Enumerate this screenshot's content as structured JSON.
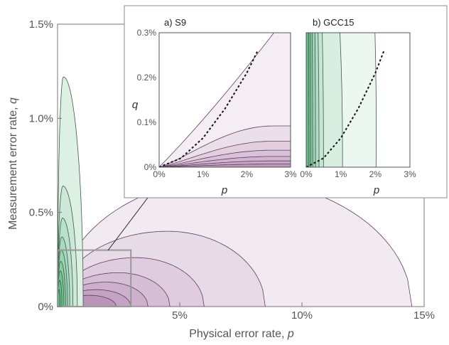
{
  "chart_data": [
    {
      "type": "area",
      "xlabel": "Physical error rate, ",
      "xlabel_symbol": "p",
      "ylabel": "Measurement error rate, ",
      "ylabel_symbol": "q",
      "xlim": [
        0,
        0.15
      ],
      "ylim": [
        0,
        0.015
      ],
      "xtick_labels": [
        "5%",
        "10%",
        "15%"
      ],
      "ytick_labels": [
        "1.5%",
        "1.0%",
        "0.5%",
        "0%"
      ],
      "grid": false,
      "series": [
        {
          "color": "#3aaa6a",
          "contours": [
            {
              "p_max": 0.0105,
              "q_max": 0.0122,
              "peak_p": 0.0024
            },
            {
              "p_max": 0.0081,
              "q_max": 0.0064,
              "peak_p": 0.0022
            },
            {
              "p_max": 0.0063,
              "q_max": 0.0047,
              "peak_p": 0.002
            },
            {
              "p_max": 0.005,
              "q_max": 0.0037,
              "peak_p": 0.0017
            },
            {
              "p_max": 0.0041,
              "q_max": 0.003,
              "peak_p": 0.0015
            },
            {
              "p_max": 0.0033,
              "q_max": 0.0024,
              "peak_p": 0.0013
            },
            {
              "p_max": 0.0026,
              "q_max": 0.0019,
              "peak_p": 0.0011
            },
            {
              "p_max": 0.0018,
              "q_max": 0.0014,
              "peak_p": 0.0009
            },
            {
              "p_max": 0.001,
              "q_max": 0.0009,
              "peak_p": 0.0006
            }
          ]
        },
        {
          "color": "#8e4c8c",
          "contours": [
            {
              "p_max": 0.145,
              "q_max": 0.0068,
              "peak_p": 0.07
            },
            {
              "p_max": 0.085,
              "q_max": 0.004,
              "peak_p": 0.045
            },
            {
              "p_max": 0.06,
              "q_max": 0.0026,
              "peak_p": 0.032
            },
            {
              "p_max": 0.046,
              "q_max": 0.0018,
              "peak_p": 0.025
            },
            {
              "p_max": 0.037,
              "q_max": 0.0013,
              "peak_p": 0.02
            },
            {
              "p_max": 0.03,
              "q_max": 0.0009,
              "peak_p": 0.016
            },
            {
              "p_max": 0.024,
              "q_max": 0.0006,
              "peak_p": 0.013
            }
          ]
        }
      ],
      "zoom_box": {
        "p": [
          0,
          0.03
        ],
        "q": [
          0,
          0.003
        ]
      }
    },
    {
      "type": "area",
      "title": "a) S9",
      "xlabel": "p",
      "ylabel": "q",
      "xlim": [
        0,
        0.03
      ],
      "ylim": [
        0,
        0.003
      ],
      "xtick_labels": [
        "0%",
        "1%",
        "2%",
        "3%"
      ],
      "ytick_labels": [
        "0.3%",
        "0.2%",
        "0.1%",
        "0%"
      ],
      "color": "#8e4c8c",
      "contours": [
        {
          "p_max": 0.03,
          "q_max": 0.002
        },
        {
          "p_max": 0.03,
          "q_max": 0.00092
        },
        {
          "p_max": 0.03,
          "q_max": 0.00058
        },
        {
          "p_max": 0.03,
          "q_max": 0.00038
        },
        {
          "p_max": 0.03,
          "q_max": 0.00024
        },
        {
          "p_max": 0.03,
          "q_max": 0.00014
        },
        {
          "p_max": 0.03,
          "q_max": 7e-05
        }
      ],
      "dashed_curve": {
        "x": [
          0.0,
          0.005,
          0.01,
          0.015,
          0.02,
          0.0225
        ],
        "y": [
          0.0,
          0.0002,
          0.00065,
          0.0013,
          0.0021,
          0.0026
        ]
      }
    },
    {
      "type": "area",
      "title": "b) GCC15",
      "xlabel": "p",
      "xlim": [
        0,
        0.03
      ],
      "ylim": [
        0,
        0.003
      ],
      "xtick_labels": [
        "0%",
        "1%",
        "2%",
        "3%"
      ],
      "color": "#3aaa6a",
      "contours": [
        {
          "p_max": 0.0202
        },
        {
          "p_max": 0.0105
        },
        {
          "p_max": 0.005
        },
        {
          "p_max": 0.0037
        },
        {
          "p_max": 0.0027
        },
        {
          "p_max": 0.0019
        },
        {
          "p_max": 0.0013
        },
        {
          "p_max": 0.0008
        }
      ],
      "dashed_curve": {
        "x": [
          0.0,
          0.005,
          0.01,
          0.015,
          0.02,
          0.0225
        ],
        "y": [
          0.0,
          0.0002,
          0.00065,
          0.0013,
          0.0021,
          0.0026
        ]
      }
    }
  ]
}
